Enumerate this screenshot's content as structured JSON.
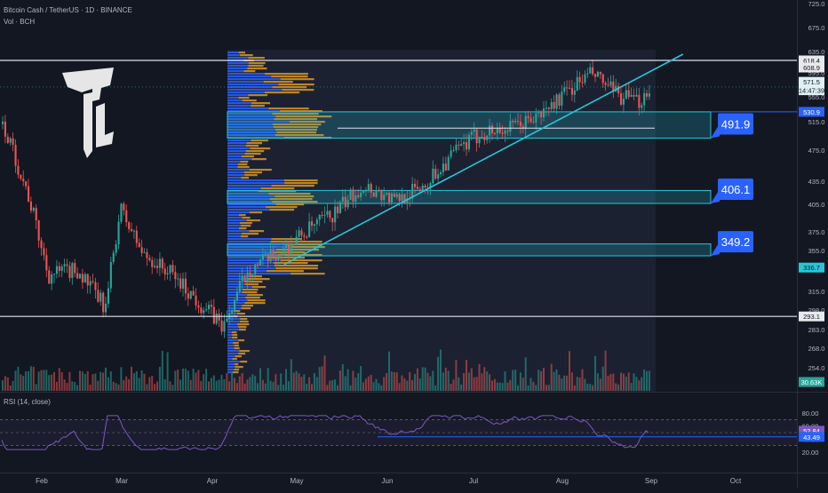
{
  "header": {
    "symbol_line": "Bitcoin Cash / TetherUS · 1D · BINANCE",
    "volume_label": "Vol · BCH"
  },
  "rsi": {
    "label": "RSI (14, close)",
    "axis_ticks": [
      "80.00",
      "60.00",
      "40.00",
      "20.00"
    ],
    "value_badge": "52.84",
    "ma_badge": "43.49"
  },
  "price_axis": {
    "ticks": [
      "725.0",
      "675.0",
      "635.0",
      "595.0",
      "555.0",
      "515.0",
      "475.0",
      "435.0",
      "405.0",
      "375.0",
      "355.0",
      "335.0",
      "315.0",
      "298.0",
      "283.0",
      "268.0",
      "254.0"
    ],
    "badges": [
      {
        "text": "618.4",
        "kind": "line",
        "bg": "#e8e9ec",
        "fg": "#131722"
      },
      {
        "text": "608.9",
        "kind": "high",
        "bg": "#e8e9ec",
        "fg": "#131722"
      },
      {
        "text": "571.5",
        "kind": "price",
        "bg": "#dff0f4",
        "fg": "#131722"
      },
      {
        "text": "14:47:39",
        "kind": "countdown",
        "bg": "#dff0f4",
        "fg": "#131722"
      },
      {
        "text": "530.9",
        "kind": "level",
        "bg": "#2962ff",
        "fg": "#ffffff"
      },
      {
        "text": "336.7",
        "kind": "line2",
        "bg": "#26c6da",
        "fg": "#131722"
      },
      {
        "text": "293.1",
        "kind": "low",
        "bg": "#e8e9ec",
        "fg": "#131722"
      },
      {
        "text": "30.63K",
        "kind": "volume",
        "bg": "#26a69a",
        "fg": "#ffffff"
      }
    ]
  },
  "time_axis": {
    "months": [
      "Feb",
      "Mar",
      "Apr",
      "May",
      "Jun",
      "Jul",
      "Aug",
      "Sep",
      "Oct"
    ]
  },
  "zones": [
    {
      "label": "491.9",
      "top": 530.9,
      "bottom": 491.9
    },
    {
      "label": "406.1",
      "top": 423,
      "bottom": 406.1
    },
    {
      "label": "349.2",
      "top": 362,
      "bottom": 349.2
    }
  ],
  "chart_data": {
    "type": "candlestick",
    "pair": "BCH/USDT",
    "timeframe": "1D",
    "exchange": "BINANCE",
    "horizontal_lines": [
      618.4,
      293.1
    ],
    "support_line_level": 506,
    "trendline": {
      "from": [
        "Apr 28",
        340
      ],
      "to": [
        "Aug 30",
        610
      ]
    },
    "current_price": 571.5,
    "closes": [
      {
        "date": "Jan 10",
        "close": 580
      },
      {
        "date": "Jan 20",
        "close": 515
      },
      {
        "date": "Jan 28",
        "close": 430
      },
      {
        "date": "Feb 5",
        "close": 330
      },
      {
        "date": "Feb 15",
        "close": 335
      },
      {
        "date": "Feb 25",
        "close": 300
      },
      {
        "date": "Mar 2",
        "close": 400
      },
      {
        "date": "Mar 10",
        "close": 350
      },
      {
        "date": "Mar 20",
        "close": 330
      },
      {
        "date": "Mar 31",
        "close": 300
      },
      {
        "date": "Apr 7",
        "close": 285
      },
      {
        "date": "Apr 15",
        "close": 335
      },
      {
        "date": "Apr 25",
        "close": 350
      },
      {
        "date": "May 5",
        "close": 375
      },
      {
        "date": "May 15",
        "close": 395
      },
      {
        "date": "May 25",
        "close": 430
      },
      {
        "date": "Jun 5",
        "close": 410
      },
      {
        "date": "Jun 15",
        "close": 430
      },
      {
        "date": "Jun 25",
        "close": 470
      },
      {
        "date": "Jul 5",
        "close": 500
      },
      {
        "date": "Jul 15",
        "close": 505
      },
      {
        "date": "Jul 25",
        "close": 525
      },
      {
        "date": "Aug 5",
        "close": 570
      },
      {
        "date": "Aug 12",
        "close": 595
      },
      {
        "date": "Aug 20",
        "close": 560
      },
      {
        "date": "Aug 28",
        "close": 545
      },
      {
        "date": "Sep 1",
        "close": 571.5
      }
    ],
    "rsi": {
      "levels": [
        70,
        50,
        30
      ],
      "last": 52.84,
      "ma": 43.49
    }
  },
  "colors": {
    "background": "#131722",
    "up": "#26a69a",
    "down": "#ef5350",
    "zone": "#26c6da",
    "label_box": "#2962ff",
    "trendline": "#26c6da",
    "profile_blue": "#2962ff",
    "profile_orange": "#f5a623",
    "rsi_line": "#7e57c2"
  },
  "logo": {
    "name": "tc-logo-icon"
  }
}
